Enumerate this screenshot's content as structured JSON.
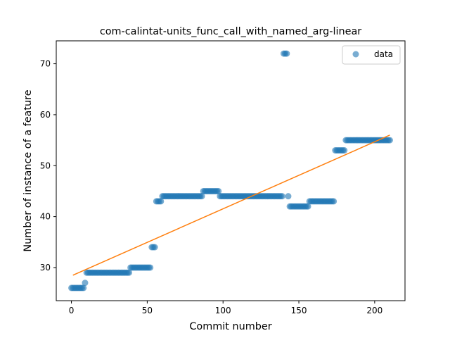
{
  "chart_data": {
    "type": "scatter",
    "title": "com-calintat-units_func_call_with_named_arg-linear",
    "xlabel": "Commit number",
    "ylabel": "Number of instance of a feature",
    "xlim": [
      -10,
      220
    ],
    "ylim": [
      23.5,
      74.5
    ],
    "xticks": [
      0,
      50,
      100,
      150,
      200
    ],
    "yticks": [
      30,
      40,
      50,
      60,
      70
    ],
    "grid": false,
    "legend": {
      "placement": "top-right",
      "entries": [
        "data"
      ]
    },
    "colors": {
      "points": "#1f77b4",
      "fit": "#ff7f0e"
    },
    "segments": [
      {
        "x_start": 0,
        "x_end": 8,
        "y": 26
      },
      {
        "x_start": 9,
        "x_end": 9,
        "y": 27
      },
      {
        "x_start": 10,
        "x_end": 38,
        "y": 29
      },
      {
        "x_start": 39,
        "x_end": 52,
        "y": 30
      },
      {
        "x_start": 53,
        "x_end": 55,
        "y": 34
      },
      {
        "x_start": 56,
        "x_end": 59,
        "y": 43
      },
      {
        "x_start": 60,
        "x_end": 86,
        "y": 44
      },
      {
        "x_start": 87,
        "x_end": 97,
        "y": 45
      },
      {
        "x_start": 98,
        "x_end": 139,
        "y": 44
      },
      {
        "x_start": 140,
        "x_end": 142,
        "y": 72
      },
      {
        "x_start": 143,
        "x_end": 143,
        "y": 44
      },
      {
        "x_start": 144,
        "x_end": 156,
        "y": 42
      },
      {
        "x_start": 157,
        "x_end": 173,
        "y": 43
      },
      {
        "x_start": 174,
        "x_end": 180,
        "y": 53
      },
      {
        "x_start": 181,
        "x_end": 210,
        "y": 55
      }
    ],
    "fit_line": {
      "x": [
        1,
        210
      ],
      "y": [
        28.5,
        56
      ]
    }
  }
}
